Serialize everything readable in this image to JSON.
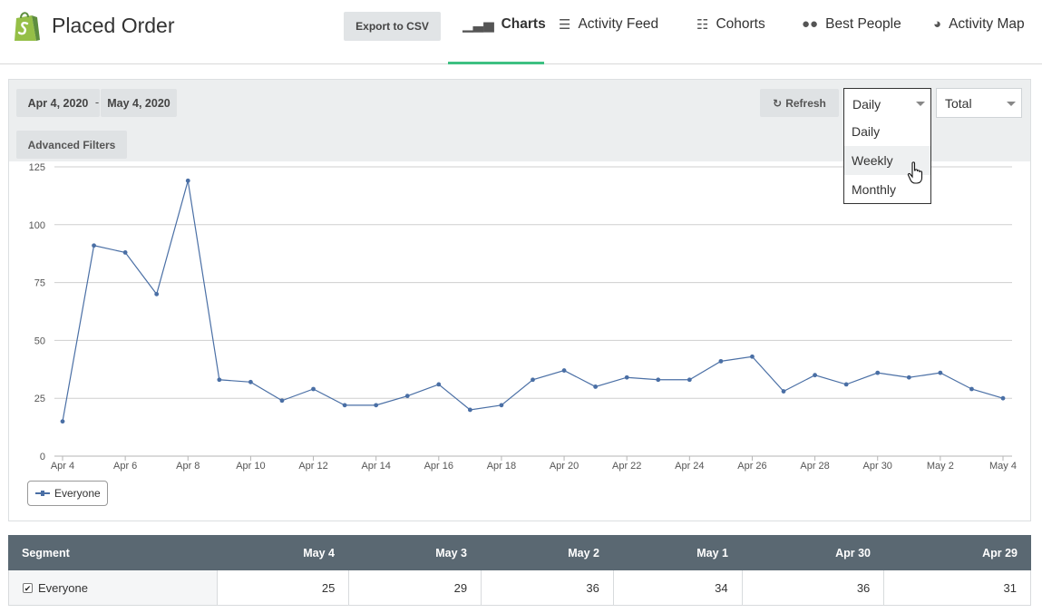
{
  "header": {
    "title": "Placed Order",
    "export_label": "Export to CSV",
    "tabs": [
      {
        "label": "Charts",
        "icon": "bar-chart-icon",
        "active": true
      },
      {
        "label": "Activity Feed",
        "icon": "list-icon",
        "active": false
      },
      {
        "label": "Cohorts",
        "icon": "cohorts-icon",
        "active": false
      },
      {
        "label": "Best People",
        "icon": "people-icon",
        "active": false
      },
      {
        "label": "Activity Map",
        "icon": "globe-icon",
        "active": false
      }
    ],
    "accent_color": "#3ec082"
  },
  "toolbar": {
    "date_start": "Apr 4, 2020",
    "date_separator": "-",
    "date_end": "May 4, 2020",
    "refresh_label": "Refresh",
    "interval_selected": "Daily",
    "metric_selected": "Total",
    "advanced_filters_label": "Advanced Filters",
    "interval_options": [
      "Daily",
      "Weekly",
      "Monthly"
    ],
    "hovered_option": "Weekly"
  },
  "chart_data": {
    "type": "line",
    "title": "",
    "xlabel": "",
    "ylabel": "",
    "ylim": [
      0,
      125
    ],
    "yticks": [
      0,
      25,
      50,
      75,
      100,
      125
    ],
    "x": [
      "Apr 4",
      "Apr 5",
      "Apr 6",
      "Apr 7",
      "Apr 8",
      "Apr 9",
      "Apr 10",
      "Apr 11",
      "Apr 12",
      "Apr 13",
      "Apr 14",
      "Apr 15",
      "Apr 16",
      "Apr 17",
      "Apr 18",
      "Apr 19",
      "Apr 20",
      "Apr 21",
      "Apr 22",
      "Apr 23",
      "Apr 24",
      "Apr 25",
      "Apr 26",
      "Apr 27",
      "Apr 28",
      "Apr 29",
      "Apr 30",
      "May 1",
      "May 2",
      "May 3",
      "May 4"
    ],
    "xtick_labels": [
      "Apr 4",
      "Apr 6",
      "Apr 8",
      "Apr 10",
      "Apr 12",
      "Apr 14",
      "Apr 16",
      "Apr 18",
      "Apr 20",
      "Apr 22",
      "Apr 24",
      "Apr 26",
      "Apr 28",
      "Apr 30",
      "May 2",
      "May 4"
    ],
    "series": [
      {
        "name": "Everyone",
        "color": "#4a6fa5",
        "values": [
          15,
          91,
          88,
          70,
          119,
          33,
          32,
          24,
          29,
          22,
          22,
          26,
          31,
          20,
          22,
          33,
          37,
          30,
          34,
          33,
          33,
          41,
          43,
          28,
          35,
          31,
          36,
          34,
          36,
          29,
          25
        ]
      }
    ],
    "grid": true,
    "legend": "bottom-left"
  },
  "table": {
    "headers": [
      "Segment",
      "May 4",
      "May 3",
      "May 2",
      "May 1",
      "Apr 30",
      "Apr 29"
    ],
    "rows": [
      {
        "segment": "Everyone",
        "checked": true,
        "values": [
          "25",
          "29",
          "36",
          "34",
          "36",
          "31"
        ]
      }
    ]
  }
}
